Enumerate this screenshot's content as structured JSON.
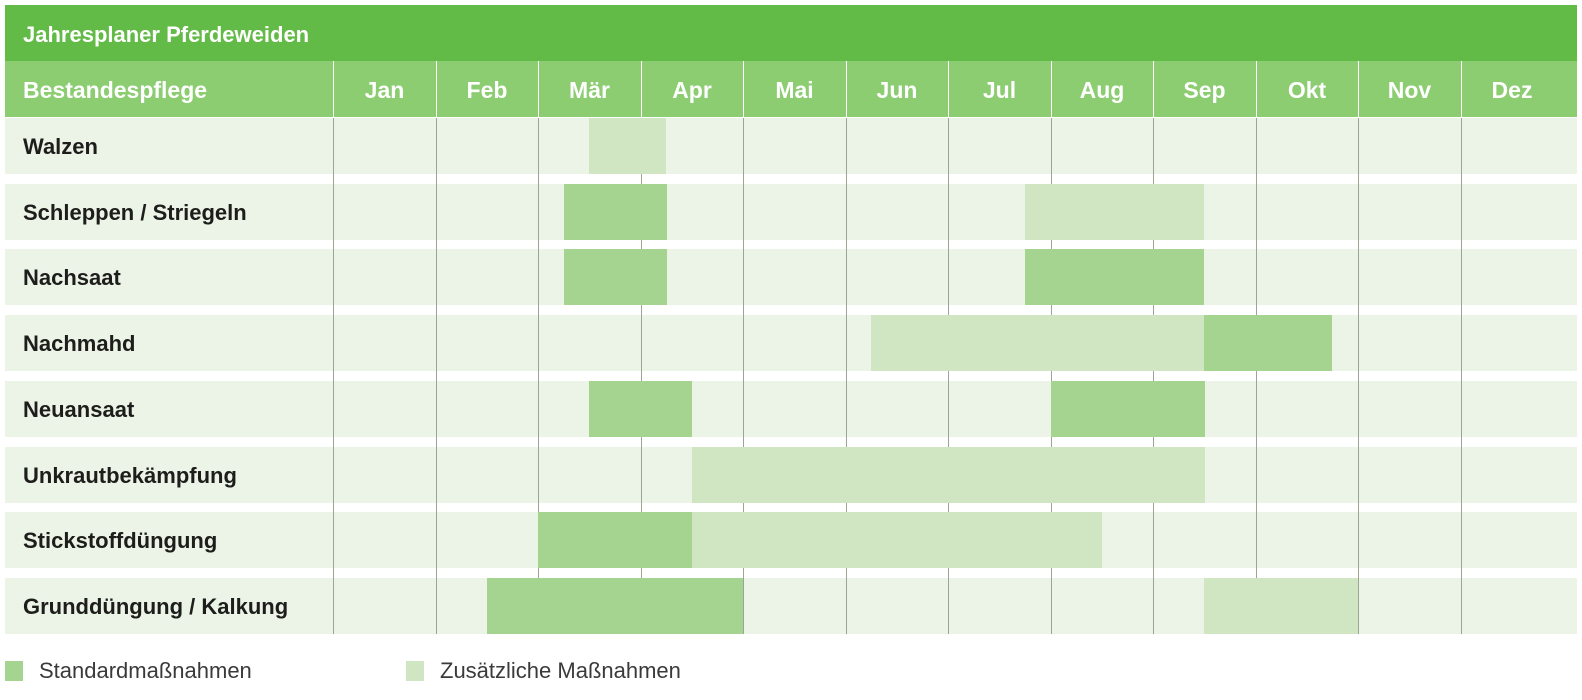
{
  "colors": {
    "title_bg": "#63bb47",
    "header_bg": "#8ccd72",
    "row_bg": "#ebf4e6",
    "standard": "#a4d48f",
    "additional": "#d0e6c3"
  },
  "chart_data": {
    "type": "gantt",
    "title": "Jahresplaner Pferdeweiden",
    "row_header": "Bestandespflege",
    "months": [
      "Jan",
      "Feb",
      "Mär",
      "Apr",
      "Mai",
      "Jun",
      "Jul",
      "Aug",
      "Sep",
      "Okt",
      "Nov",
      "Dez"
    ],
    "legend": [
      {
        "key": "standard",
        "label": "Standardmaßnahmen"
      },
      {
        "key": "additional",
        "label": "Zusätzliche Maßnahmen"
      }
    ],
    "tasks": [
      {
        "name": "Walzen",
        "periods": [
          {
            "start": 2.5,
            "end": 3.25,
            "kind": "additional"
          }
        ]
      },
      {
        "name": "Schleppen / Striegeln",
        "periods": [
          {
            "start": 2.25,
            "end": 3.25,
            "kind": "standard"
          },
          {
            "start": 6.75,
            "end": 8.5,
            "kind": "additional"
          }
        ]
      },
      {
        "name": "Nachsaat",
        "periods": [
          {
            "start": 2.25,
            "end": 3.25,
            "kind": "standard"
          },
          {
            "start": 6.75,
            "end": 8.5,
            "kind": "standard"
          }
        ]
      },
      {
        "name": "Nachmahd",
        "periods": [
          {
            "start": 5.25,
            "end": 8.5,
            "kind": "additional"
          },
          {
            "start": 8.5,
            "end": 9.75,
            "kind": "standard"
          }
        ]
      },
      {
        "name": "Neuansaat",
        "periods": [
          {
            "start": 2.5,
            "end": 3.5,
            "kind": "standard"
          },
          {
            "start": 7.0,
            "end": 8.5,
            "kind": "standard"
          }
        ]
      },
      {
        "name": "Unkrautbekämpfung",
        "periods": [
          {
            "start": 3.5,
            "end": 8.5,
            "kind": "additional"
          }
        ]
      },
      {
        "name": "Stickstoffdüngung",
        "periods": [
          {
            "start": 2.0,
            "end": 3.5,
            "kind": "standard"
          },
          {
            "start": 3.5,
            "end": 7.5,
            "kind": "additional"
          }
        ]
      },
      {
        "name": "Grunddüngung / Kalkung",
        "periods": [
          {
            "start": 1.5,
            "end": 4.0,
            "kind": "standard"
          },
          {
            "start": 8.5,
            "end": 10.0,
            "kind": "additional"
          }
        ]
      }
    ]
  }
}
